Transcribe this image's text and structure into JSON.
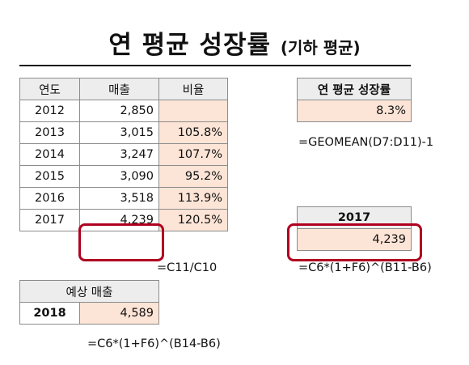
{
  "title": {
    "main": "연 평균 성장률",
    "sub": "(기하 평균)"
  },
  "main_table": {
    "headers": [
      "연도",
      "매출",
      "비율"
    ],
    "rows": [
      {
        "year": "2012",
        "sales": "2,850",
        "ratio": ""
      },
      {
        "year": "2013",
        "sales": "3,015",
        "ratio": "105.8%"
      },
      {
        "year": "2014",
        "sales": "3,247",
        "ratio": "107.7%"
      },
      {
        "year": "2015",
        "sales": "3,090",
        "ratio": "95.2%"
      },
      {
        "year": "2016",
        "sales": "3,518",
        "ratio": "113.9%"
      },
      {
        "year": "2017",
        "sales": "4,239",
        "ratio": "120.5%"
      }
    ],
    "formula": "=C11/C10"
  },
  "forecast_table": {
    "header": "예상 매출",
    "year": "2018",
    "value": "4,589",
    "formula": "=C6*(1+F6)^(B14-B6)"
  },
  "cagr_table": {
    "header": "연 평균 성장률",
    "value": "8.3%",
    "formula": "=GEOMEAN(D7:D11)-1"
  },
  "check_table": {
    "header": "2017",
    "value": "4,239",
    "formula": "=C6*(1+F6)^(B11-B6)"
  },
  "colors": {
    "header_fill": "#ededed",
    "peach_fill": "#fce4d6",
    "highlight": "#b00020"
  }
}
